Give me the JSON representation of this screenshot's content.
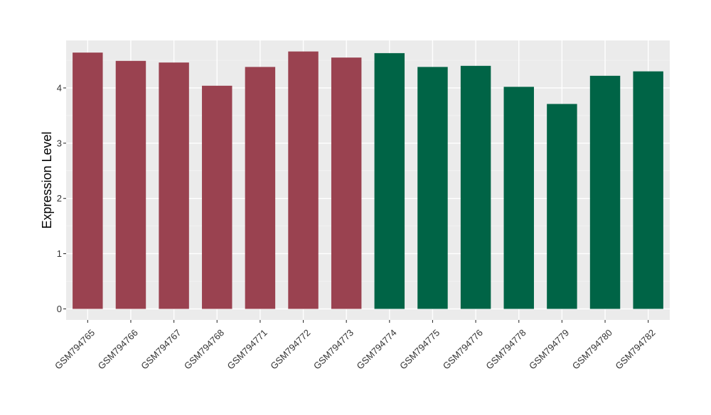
{
  "chart_data": {
    "type": "bar",
    "title": "",
    "xlabel": "",
    "ylabel": "Expression Level",
    "ylim": [
      -0.2,
      4.86
    ],
    "yticks": [
      0,
      1,
      2,
      3,
      4
    ],
    "grid": true,
    "legend": "none",
    "categories": [
      "GSM794765",
      "GSM794766",
      "GSM794767",
      "GSM794768",
      "GSM794771",
      "GSM794772",
      "GSM794773",
      "GSM794774",
      "GSM794775",
      "GSM794776",
      "GSM794778",
      "GSM794779",
      "GSM794780",
      "GSM794782"
    ],
    "values": [
      4.64,
      4.49,
      4.46,
      4.04,
      4.38,
      4.66,
      4.55,
      4.63,
      4.38,
      4.4,
      4.02,
      3.71,
      4.22,
      4.3
    ],
    "bar_colors": [
      "#9A4250",
      "#9A4250",
      "#9A4250",
      "#9A4250",
      "#9A4250",
      "#9A4250",
      "#9A4250",
      "#006446",
      "#006446",
      "#006446",
      "#006446",
      "#006446",
      "#006446",
      "#006446"
    ],
    "colors": {
      "panel_background": "#EBEBEB",
      "grid_major": "#FFFFFF",
      "grid_minor": "#F5F5F5",
      "axis_text": "#333333",
      "axis_title": "#000000"
    }
  }
}
